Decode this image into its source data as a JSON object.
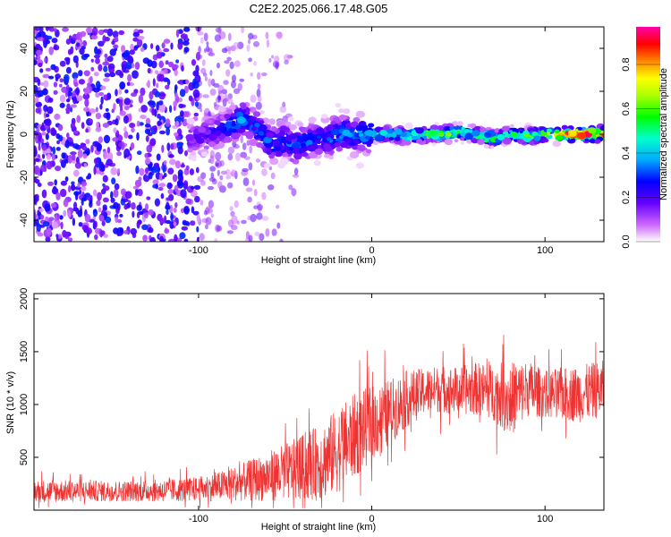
{
  "figure_title": "C2E2.2025.066.17.48.G05",
  "colors": {
    "snr_line": "#ee3333",
    "frame": "#000000"
  },
  "chart_data": [
    {
      "type": "heatmap",
      "title": "C2E2.2025.066.17.48.G05",
      "xlabel": "Height of straight line (km)",
      "ylabel": "Frequency (Hz)",
      "xlim": [
        -195,
        134
      ],
      "ylim": [
        -50,
        50
      ],
      "x_ticks": [
        -100,
        0,
        100
      ],
      "x_tick_labels": [
        "-100",
        "0",
        "100"
      ],
      "y_ticks": [
        -40,
        -20,
        0,
        20,
        40
      ],
      "y_tick_labels": [
        "-40",
        "-20",
        "0",
        "20",
        "40"
      ],
      "colorbar": {
        "label": "Normalized spectral amplitude",
        "range": [
          0,
          0.97
        ],
        "ticks": [
          0.0,
          0.2,
          0.4,
          0.6,
          0.8
        ],
        "tick_labels": [
          "0.0",
          "0.2",
          "0.4",
          "0.6",
          "0.8"
        ]
      },
      "ridge": {
        "x": [
          -105,
          -95,
          -85,
          -80,
          -75,
          -70,
          -65,
          -60,
          -55,
          -50,
          -45,
          -40,
          -35,
          -30,
          -25,
          -20,
          -15,
          -10,
          -5,
          0,
          10,
          20,
          30,
          40,
          50,
          60,
          70,
          80,
          90,
          100,
          110,
          120,
          134
        ],
        "frequency": [
          -2,
          0,
          3,
          5,
          7,
          5,
          2,
          -3,
          -5,
          -2,
          -6,
          -4,
          -3,
          -2,
          -2,
          0,
          1,
          -1,
          0,
          0,
          0,
          -1,
          0,
          0,
          1,
          0,
          -2,
          0,
          -1,
          0,
          0,
          0,
          0
        ],
        "amplitude": [
          0.15,
          0.2,
          0.25,
          0.3,
          0.35,
          0.3,
          0.3,
          0.3,
          0.3,
          0.3,
          0.3,
          0.3,
          0.3,
          0.25,
          0.3,
          0.35,
          0.35,
          0.3,
          0.35,
          0.4,
          0.45,
          0.5,
          0.55,
          0.6,
          0.55,
          0.5,
          0.5,
          0.5,
          0.55,
          0.6,
          0.75,
          0.85,
          0.85
        ]
      },
      "noise_region": {
        "x_range": [
          -195,
          -40
        ],
        "amplitude_range": [
          0.05,
          0.25
        ]
      }
    },
    {
      "type": "line",
      "xlabel": "Height of straight line (km)",
      "ylabel": "SNR (10 * v/v)",
      "xlim": [
        -195,
        134
      ],
      "ylim": [
        0,
        2050
      ],
      "x_ticks": [
        -100,
        0,
        100
      ],
      "x_tick_labels": [
        "-100",
        "0",
        "100"
      ],
      "y_ticks": [
        500,
        1000,
        1500,
        2000
      ],
      "y_tick_labels": [
        "500",
        "1000",
        "1500",
        "2000"
      ],
      "series": [
        {
          "name": "SNR",
          "x": [
            -195,
            -180,
            -160,
            -140,
            -120,
            -100,
            -90,
            -80,
            -70,
            -60,
            -50,
            -40,
            -30,
            -20,
            -10,
            0,
            10,
            20,
            30,
            40,
            50,
            60,
            70,
            80,
            90,
            100,
            110,
            120,
            134
          ],
          "mean": [
            180,
            180,
            180,
            180,
            185,
            200,
            220,
            250,
            280,
            320,
            360,
            400,
            450,
            560,
            700,
            820,
            920,
            1050,
            1120,
            1150,
            1130,
            1150,
            1120,
            1050,
            1150,
            1100,
            1100,
            1100,
            1150
          ],
          "spread": [
            120,
            120,
            110,
            110,
            120,
            130,
            150,
            180,
            220,
            260,
            300,
            350,
            400,
            450,
            450,
            400,
            350,
            300,
            250,
            250,
            250,
            280,
            300,
            400,
            300,
            250,
            280,
            300,
            300
          ]
        }
      ]
    }
  ]
}
